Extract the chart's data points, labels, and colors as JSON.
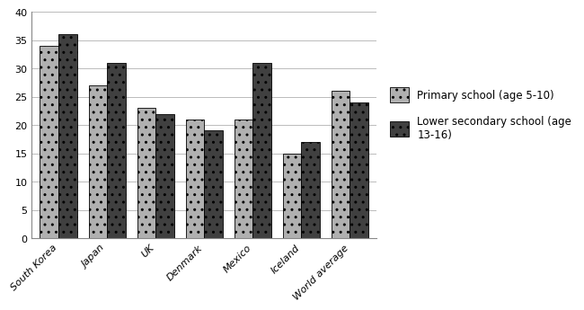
{
  "categories": [
    "South Korea",
    "Japan",
    "UK",
    "Denmark",
    "Mexico",
    "Iceland",
    "World average"
  ],
  "primary": [
    34,
    27,
    23,
    21,
    21,
    15,
    26
  ],
  "secondary": [
    36,
    31,
    22,
    19,
    31,
    17,
    24
  ],
  "primary_label": "Primary school (age 5-10)",
  "secondary_label": "Lower secondary school (age\n13-16)",
  "ylim": [
    0,
    40
  ],
  "yticks": [
    0,
    5,
    10,
    15,
    20,
    25,
    30,
    35,
    40
  ],
  "primary_hatch": "..",
  "secondary_hatch": "..",
  "primary_color": "#b0b0b0",
  "secondary_color": "#404040",
  "bar_width": 0.38,
  "background_color": "#ffffff",
  "grid_color": "#bbbbbb",
  "tick_fontsize": 8,
  "legend_fontsize": 8.5
}
